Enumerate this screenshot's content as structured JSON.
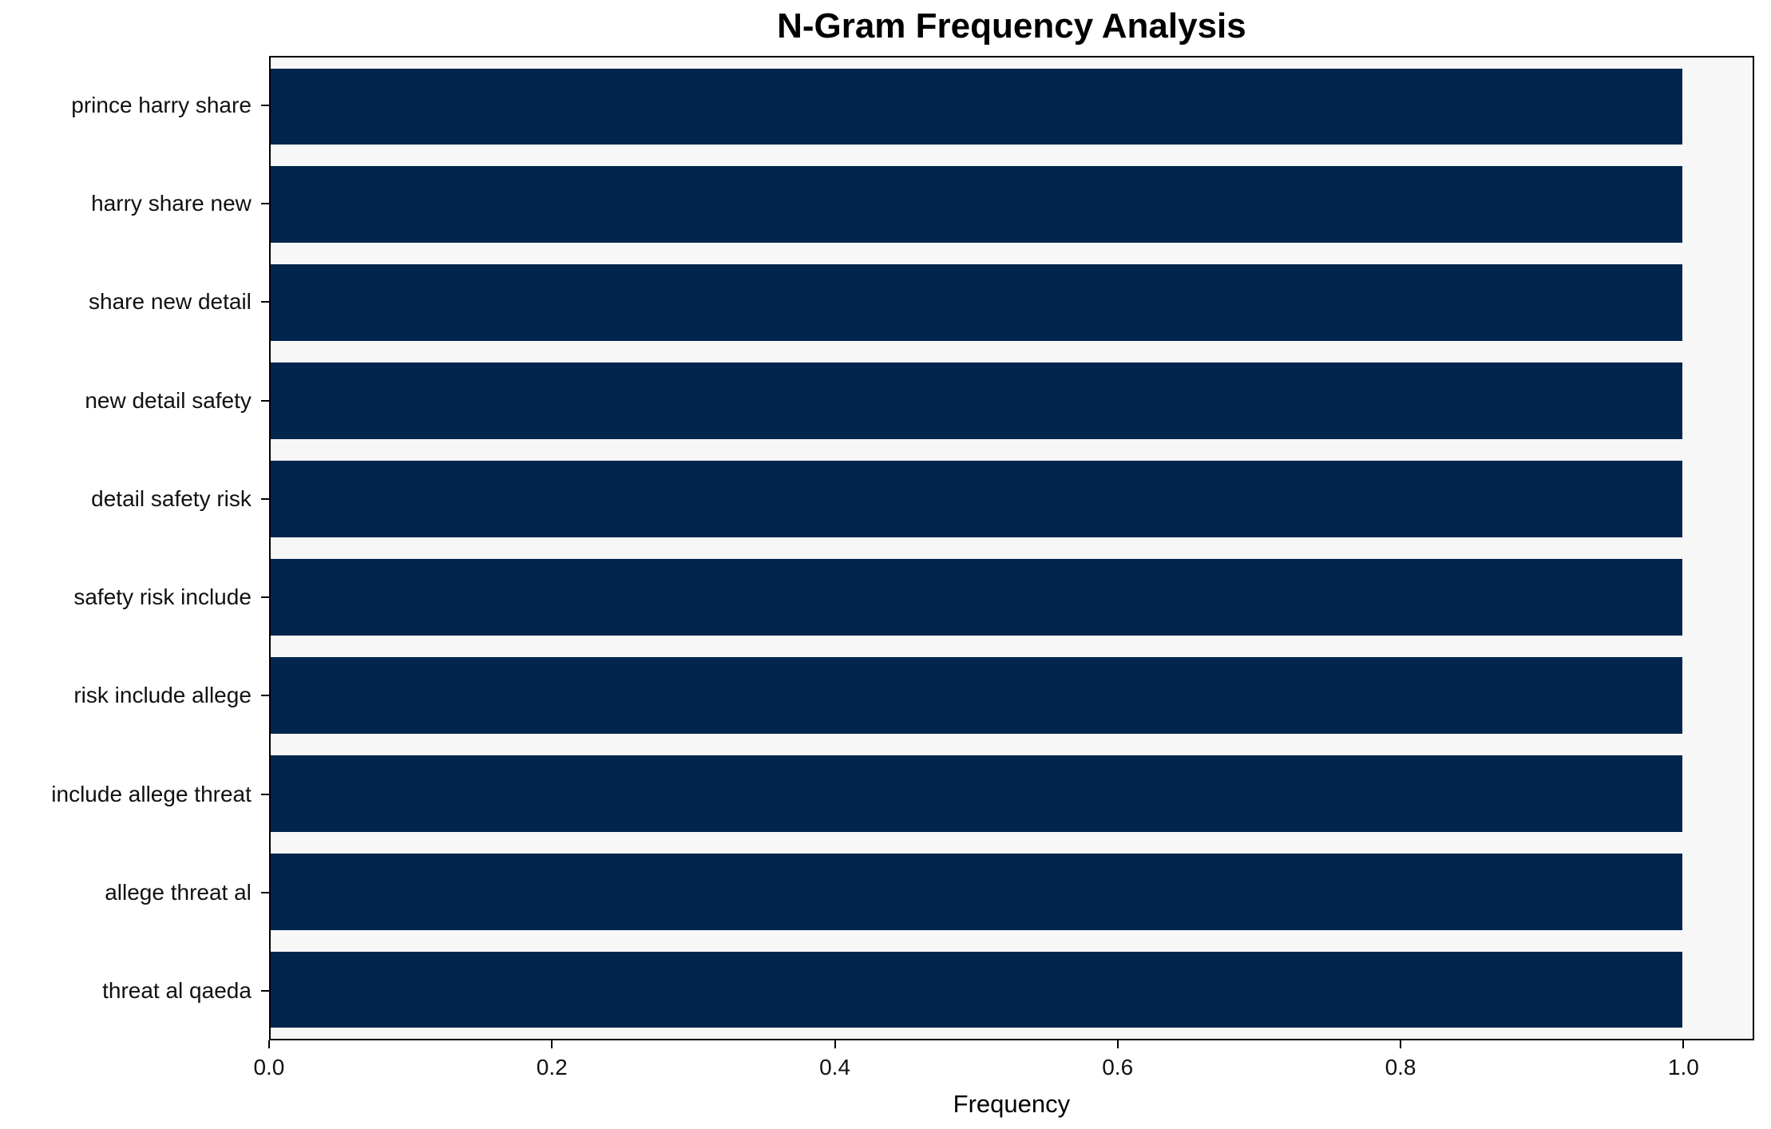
{
  "chart_data": {
    "type": "bar",
    "orientation": "horizontal",
    "title": "N-Gram Frequency Analysis",
    "categories": [
      "prince harry share",
      "harry share new",
      "share new detail",
      "new detail safety",
      "detail safety risk",
      "safety risk include",
      "risk include allege",
      "include allege threat",
      "allege threat al",
      "threat al qaeda"
    ],
    "values": [
      1.0,
      1.0,
      1.0,
      1.0,
      1.0,
      1.0,
      1.0,
      1.0,
      1.0,
      1.0
    ],
    "xlabel": "Frequency",
    "ylabel": "",
    "xlim": [
      0,
      1.05
    ],
    "x_ticks": [
      "0.0",
      "0.2",
      "0.4",
      "0.6",
      "0.8",
      "1.0"
    ],
    "x_tick_values": [
      0.0,
      0.2,
      0.4,
      0.6,
      0.8,
      1.0
    ],
    "grid": false,
    "legend": "none",
    "bar_fraction": 0.78,
    "colors": {
      "bar": "#02254e",
      "plot_bg": "#f7f7f8",
      "figure_bg": "#ffffff",
      "spine": "#000000",
      "text": "#111111"
    }
  }
}
